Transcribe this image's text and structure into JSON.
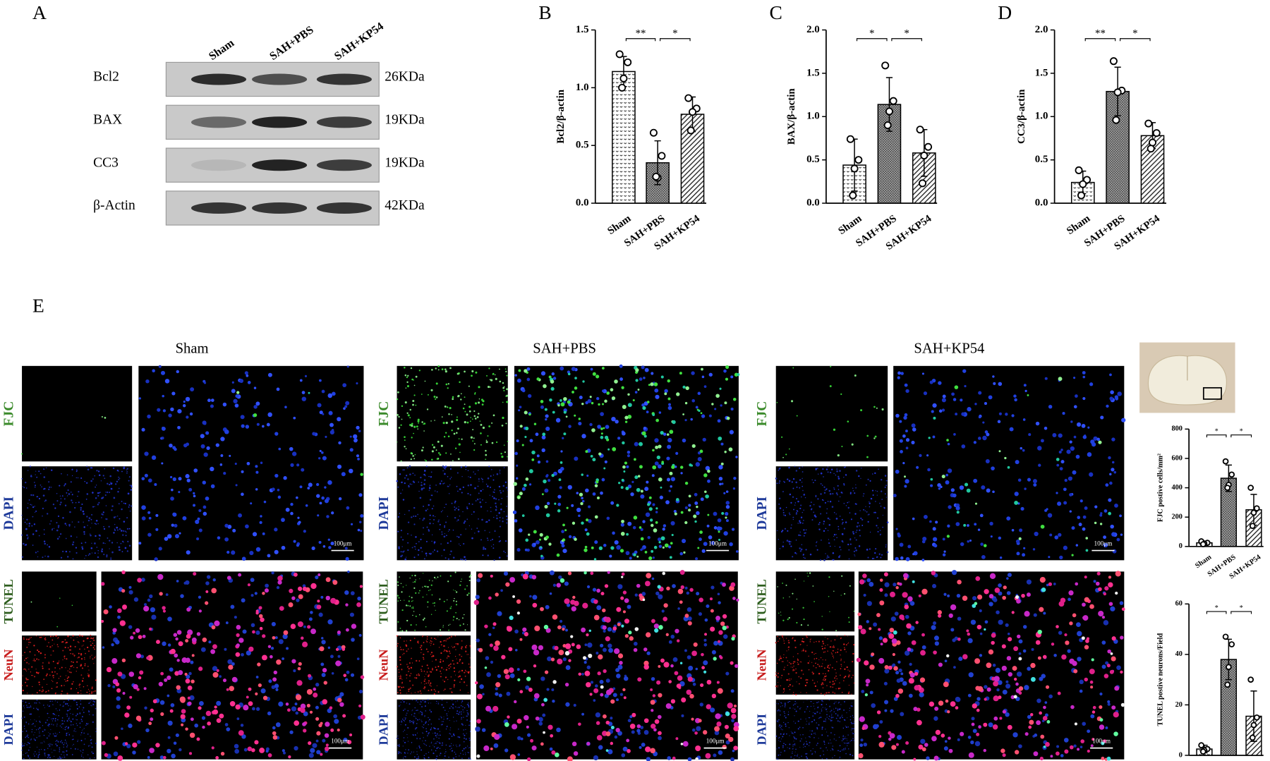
{
  "panel_labels": [
    "A",
    "B",
    "C",
    "D",
    "E"
  ],
  "western_blot": {
    "lanes": [
      "Sham",
      "SAH+PBS",
      "SAH+KP54"
    ],
    "rows": [
      {
        "protein": "Bcl2",
        "size": "26KDa"
      },
      {
        "protein": "BAX",
        "size": "19KDa"
      },
      {
        "protein": "CC3",
        "size": "19KDa"
      },
      {
        "protein": "β-Actin",
        "size": "42KDa"
      }
    ]
  },
  "microscopy": {
    "groups": [
      "Sham",
      "SAH+PBS",
      "SAH+KP54"
    ],
    "top_stains": [
      "FJC",
      "DAPI"
    ],
    "bottom_stains": [
      "TUNEL",
      "NeuN",
      "DAPI"
    ],
    "scale_bar": "100μm"
  },
  "chart_data": [
    {
      "type": "bar",
      "ylabel": "Bcl2/β-actin",
      "categories": [
        "Sham",
        "SAH+PBS",
        "SAH+KP54"
      ],
      "values": [
        1.14,
        0.35,
        0.77
      ],
      "errors": [
        0.13,
        0.19,
        0.15
      ],
      "points": [
        [
          1.29,
          1.22,
          1.08,
          1.0
        ],
        [
          0.61,
          0.41,
          0.22,
          0.23
        ],
        [
          0.91,
          0.82,
          0.79,
          0.63
        ]
      ],
      "bar_patterns": [
        "dots",
        "grid",
        "diagonal"
      ],
      "significance": [
        "**",
        "*"
      ],
      "ylim": [
        0,
        1.5
      ],
      "yticks": [
        {
          "value": 0,
          "label": "0.0"
        },
        0.5,
        {
          "value": 1,
          "label": "1.0"
        },
        1.5
      ]
    },
    {
      "type": "bar",
      "ylabel": "BAX/β-actin",
      "categories": [
        "Sham",
        "SAH+PBS",
        "SAH+KP54"
      ],
      "values": [
        0.44,
        1.14,
        0.58
      ],
      "errors": [
        0.3,
        0.31,
        0.27
      ],
      "points": [
        [
          0.74,
          0.5,
          0.4,
          0.09
        ],
        [
          1.59,
          1.18,
          1.06,
          0.9
        ],
        [
          0.85,
          0.65,
          0.55,
          0.23
        ]
      ],
      "bar_patterns": [
        "dots",
        "grid",
        "diagonal"
      ],
      "significance": [
        "*",
        "*"
      ],
      "ylim": [
        0,
        2
      ],
      "yticks": [
        {
          "value": 0,
          "label": "0.0"
        },
        0.5,
        {
          "value": 1,
          "label": "1.0"
        },
        1.5,
        {
          "value": 2,
          "label": "2.0"
        }
      ]
    },
    {
      "type": "bar",
      "ylabel": "CC3/β-actin",
      "categories": [
        "Sham",
        "SAH+PBS",
        "SAH+KP54"
      ],
      "values": [
        0.24,
        1.29,
        0.78
      ],
      "errors": [
        0.13,
        0.28,
        0.15
      ],
      "points": [
        [
          0.38,
          0.27,
          0.22,
          0.09
        ],
        [
          1.64,
          1.3,
          1.28,
          0.96
        ],
        [
          0.92,
          0.81,
          0.7,
          0.63
        ]
      ],
      "bar_patterns": [
        "dots",
        "grid",
        "diagonal"
      ],
      "significance": [
        "**",
        "*"
      ],
      "ylim": [
        0,
        2
      ],
      "yticks": [
        {
          "value": 0,
          "label": "0.0"
        },
        0.5,
        {
          "value": 1,
          "label": "1.0"
        },
        1.5,
        {
          "value": 2,
          "label": "2.0"
        }
      ]
    },
    {
      "type": "bar",
      "ylabel": "FJC postive cells/mm²",
      "categories": [
        "Sham",
        "SAH+PBS",
        "SAH+KP54"
      ],
      "values": [
        25,
        465,
        250
      ],
      "errors": [
        10,
        90,
        105
      ],
      "points": [
        [
          35,
          25,
          20,
          15
        ],
        [
          580,
          490,
          420,
          400
        ],
        [
          400,
          260,
          230,
          140
        ]
      ],
      "bar_patterns": [
        "dots",
        "grid",
        "diagonal"
      ],
      "significance": [
        "*",
        "*"
      ],
      "ylim": [
        0,
        800
      ],
      "yticks": [
        0,
        200,
        400,
        600,
        800
      ]
    },
    {
      "type": "bar",
      "ylabel": "TUNEL postive neurons/Field",
      "categories": [
        "Sham",
        "SAH+PBS",
        "SAH+KP54"
      ],
      "values": [
        2.5,
        38,
        15.5
      ],
      "errors": [
        1.5,
        8,
        10
      ],
      "points": [
        [
          4,
          2.5,
          2,
          1.5
        ],
        [
          47,
          44,
          35,
          28
        ],
        [
          30,
          15,
          12,
          7
        ]
      ],
      "bar_patterns": [
        "dots",
        "grid",
        "diagonal"
      ],
      "significance": [
        "*",
        "*"
      ],
      "ylim": [
        0,
        60
      ],
      "yticks": [
        0,
        20,
        40,
        60
      ]
    }
  ]
}
